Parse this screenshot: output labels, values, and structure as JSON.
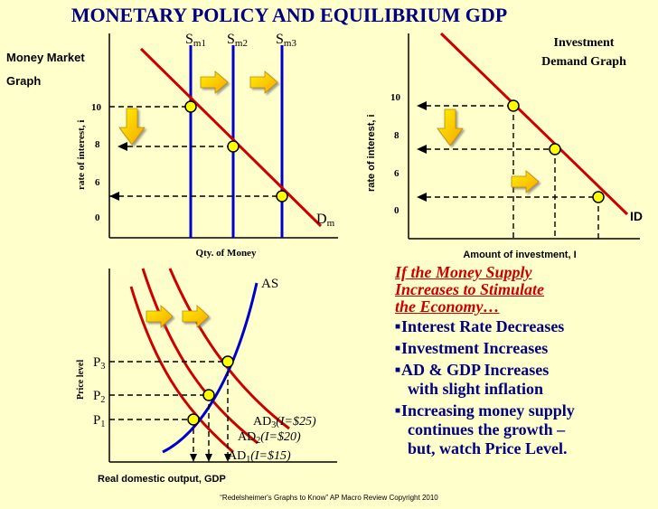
{
  "title": "MONETARY POLICY AND EQUILIBRIUM GDP",
  "colors": {
    "title": "#000080",
    "background": "#FFFFCC",
    "supply_line": "#0000CC",
    "demand_line": "#CC0000",
    "equilibrium_dot": "#FFFF00",
    "arrow_fill": "#FFCC00",
    "text_accent": "#CC0000",
    "text_body": "#000080"
  },
  "icons": {
    "shift_arrow_right": "right-arrow-icon",
    "shift_arrow_down": "down-arrow-icon",
    "equilibrium_point": "circle-dot-icon"
  },
  "money_market": {
    "panel_title_line1": "Money Market",
    "panel_title_line2": "Graph",
    "y_axis_label": "rate of interest, i",
    "x_axis_label": "Qty. of Money",
    "y_ticks": [
      "10",
      "8",
      "6",
      "0"
    ],
    "demand_label": "D",
    "demand_sub": "m",
    "supply_labels": [
      {
        "s": "S",
        "sub": "m1"
      },
      {
        "s": "S",
        "sub": "m2"
      },
      {
        "s": "S",
        "sub": "m3"
      }
    ]
  },
  "investment": {
    "panel_title_line1": "Investment",
    "panel_title_line2": "Demand Graph",
    "y_axis_label": "rate of interest, i",
    "x_axis_label": "Amount of investment, I",
    "y_ticks": [
      "10",
      "8",
      "6",
      "0"
    ],
    "curve_label": "ID"
  },
  "ad_as": {
    "y_axis_label": "Price level",
    "x_axis_label": "Real domestic output, GDP",
    "as_label": "AS",
    "price_labels": [
      {
        "p": "P",
        "sub": "3"
      },
      {
        "p": "P",
        "sub": "2"
      },
      {
        "p": "P",
        "sub": "1"
      }
    ],
    "ad_labels": [
      {
        "ad": "AD",
        "sub": "3",
        "detail": "(I=$25)"
      },
      {
        "ad": "AD",
        "sub": "2",
        "detail": "(I=$20)"
      },
      {
        "ad": "AD",
        "sub": "1",
        "detail": "(I=$15)"
      }
    ]
  },
  "text_panel": {
    "headline_lines": [
      "If the Money Supply",
      "Increases to Stimulate",
      "the Economy…"
    ],
    "bullets": [
      {
        "lines": [
          "Interest Rate Decreases"
        ]
      },
      {
        "lines": [
          "Investment Increases"
        ]
      },
      {
        "lines": [
          "AD & GDP Increases",
          "with slight inflation"
        ]
      },
      {
        "lines": [
          "Increasing money supply",
          "continues the growth –",
          "but, watch Price Level."
        ]
      }
    ]
  },
  "footer": "“Redelsheimer's Graphs to Know”  AP Macro Review Copyright 2010"
}
